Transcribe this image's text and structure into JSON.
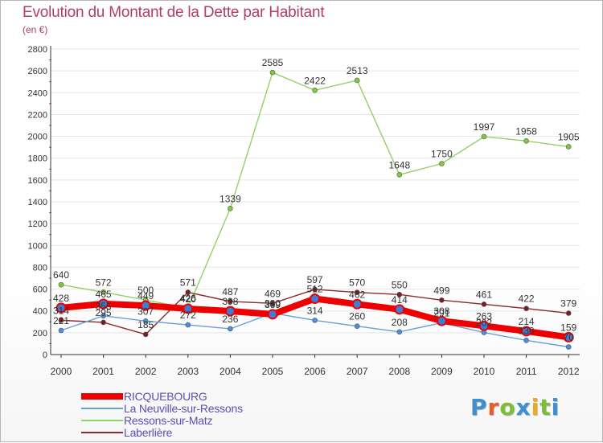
{
  "header": {
    "title": "Evolution du Montant de la Dette par Habitant",
    "subtitle": "(en €)"
  },
  "colors": {
    "title": "#b23d6b",
    "axis": "#333333",
    "grid": "#e6e6e6",
    "label": "#333333"
  },
  "logo": {
    "letters": [
      "P",
      "r",
      "o",
      "x",
      "i",
      "t",
      "i"
    ],
    "colors": [
      "#3c8fd1",
      "#e65c2a",
      "#7dbd3a",
      "#3c8fd1",
      "#f0a821",
      "#7dbd3a",
      "#3c8fd1"
    ]
  },
  "chart_data": {
    "type": "line",
    "title": "Evolution du Montant de la Dette par Habitant",
    "subtitle": "(en €)",
    "xlabel": "",
    "ylabel": "",
    "x": [
      "2000",
      "2001",
      "2002",
      "2003",
      "2004",
      "2005",
      "2006",
      "2007",
      "2008",
      "2009",
      "2010",
      "2011",
      "2012"
    ],
    "ylim": [
      0,
      2800
    ],
    "yticks": [
      0,
      200,
      400,
      600,
      800,
      1000,
      1200,
      1400,
      1600,
      1800,
      2000,
      2200,
      2400,
      2600,
      2800
    ],
    "grid": true,
    "legend_position": "bottom-left",
    "series": [
      {
        "name": "RICQUEBOURG",
        "color": "#ee0000",
        "values": [
          428,
          465,
          449,
          420,
          398,
          369,
          512,
          462,
          414,
          308,
          263,
          214,
          159
        ]
      },
      {
        "name": "La Neuville-sur-Ressons",
        "color": "#6b9fd4",
        "values": [
          221,
          355,
          307,
          272,
          236,
          380,
          314,
          260,
          208,
          291,
          202,
          130,
          70
        ]
      },
      {
        "name": "Ressons-sur-Matz",
        "color": "#92d16a",
        "values": [
          640,
          572,
          500,
          426,
          1339,
          2585,
          2422,
          2513,
          1648,
          1750,
          1997,
          1958,
          1905
        ]
      },
      {
        "name": "Laberlière",
        "color": "#8a2a2a",
        "values": [
          314,
          295,
          185,
          571,
          487,
          469,
          597,
          570,
          550,
          499,
          461,
          422,
          379
        ]
      }
    ]
  }
}
